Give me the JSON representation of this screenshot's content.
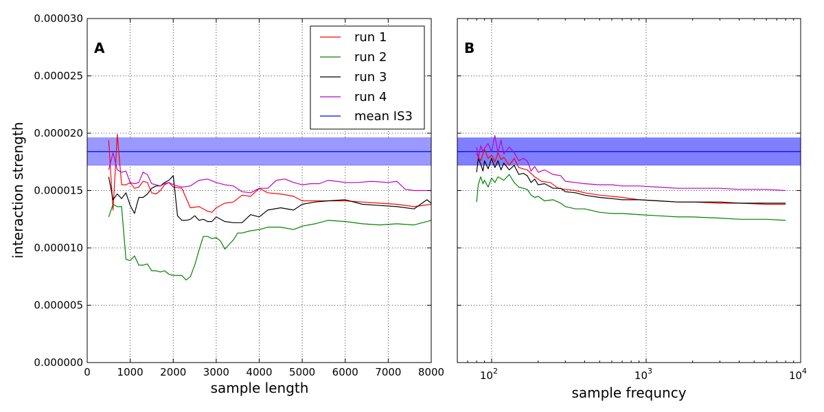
{
  "chart_data": [
    {
      "panel": "A",
      "type": "line",
      "panel_label": "A",
      "xlabel": "sample length",
      "ylabel": "interaction strength",
      "xscale": "linear",
      "xlim": [
        0,
        8000
      ],
      "ylim": [
        0,
        3e-05
      ],
      "x_ticks": [
        0,
        1000,
        2000,
        3000,
        4000,
        5000,
        6000,
        7000,
        8000
      ],
      "x_tick_labels": [
        "0",
        "1000",
        "2000",
        "3000",
        "4000",
        "5000",
        "6000",
        "7000",
        "8000"
      ],
      "y_ticks": [
        0,
        5e-06,
        1e-05,
        1.5e-05,
        2e-05,
        2.5e-05,
        3e-05
      ],
      "y_tick_labels": [
        "0.000000",
        "0.000005",
        "0.000010",
        "0.000015",
        "0.000020",
        "0.000025",
        "0.000030"
      ],
      "grid": true,
      "legend": {
        "placement": "upper-right",
        "entries": [
          {
            "label": "run 1",
            "color": "#ff0000"
          },
          {
            "label": "run 2",
            "color": "#008000"
          },
          {
            "label": "run 3",
            "color": "#000000"
          },
          {
            "label": "run 4",
            "color": "#bf00bf"
          },
          {
            "label": "mean IS3",
            "color": "#0000ff"
          }
        ]
      },
      "band": {
        "mean": 1.84e-05,
        "low": 1.72e-05,
        "high": 1.96e-05,
        "fill_color": "#9999ff",
        "line_color": "#0000ff"
      },
      "series": [
        {
          "name": "run 1",
          "color": "#ff0000",
          "x": [
            500,
            600,
            700,
            800,
            900,
            1000,
            1100,
            1200,
            1300,
            1400,
            1500,
            1600,
            1700,
            1800,
            1900,
            2000,
            2200,
            2400,
            2600,
            2800,
            2900,
            3000,
            3200,
            3400,
            3600,
            3800,
            4000,
            4200,
            4500,
            4800,
            5000,
            5300,
            5600,
            6000,
            6400,
            6800,
            7200,
            7600,
            8000
          ],
          "y": [
            1.94e-05,
            1.33e-05,
            1.99e-05,
            1.55e-05,
            1.55e-05,
            1.57e-05,
            1.52e-05,
            1.53e-05,
            1.58e-05,
            1.57e-05,
            1.48e-05,
            1.47e-05,
            1.5e-05,
            1.55e-05,
            1.57e-05,
            1.53e-05,
            1.52e-05,
            1.35e-05,
            1.36e-05,
            1.32e-05,
            1.31e-05,
            1.35e-05,
            1.39e-05,
            1.4e-05,
            1.46e-05,
            1.45e-05,
            1.52e-05,
            1.48e-05,
            1.47e-05,
            1.45e-05,
            1.41e-05,
            1.41e-05,
            1.41e-05,
            1.41e-05,
            1.4e-05,
            1.39e-05,
            1.38e-05,
            1.36e-05,
            1.38e-05
          ]
        },
        {
          "name": "run 2",
          "color": "#008000",
          "x": [
            500,
            600,
            700,
            800,
            900,
            1000,
            1100,
            1200,
            1300,
            1400,
            1500,
            1600,
            1700,
            1800,
            1900,
            2000,
            2100,
            2200,
            2300,
            2400,
            2500,
            2600,
            2700,
            2800,
            2900,
            3000,
            3100,
            3200,
            3300,
            3400,
            3500,
            3600,
            3800,
            4000,
            4200,
            4500,
            4800,
            5000,
            5300,
            5600,
            6000,
            6400,
            6800,
            7200,
            7600,
            8000
          ],
          "y": [
            1.27e-05,
            1.38e-05,
            1.36e-05,
            1.36e-05,
            9e-06,
            8.9e-06,
            9.3e-06,
            8.5e-06,
            8.5e-06,
            8.6e-06,
            8e-06,
            8e-06,
            7.9e-06,
            8e-06,
            7.7e-06,
            7.6e-06,
            7.6e-06,
            7.6e-06,
            7.2e-06,
            7.5e-06,
            8.5e-06,
            9.8e-06,
            1.1e-05,
            1.1e-05,
            1.08e-05,
            1.09e-05,
            1.06e-05,
            9.9e-06,
            1.03e-05,
            1.07e-05,
            1.13e-05,
            1.13e-05,
            1.15e-05,
            1.16e-05,
            1.18e-05,
            1.18e-05,
            1.16e-05,
            1.19e-05,
            1.21e-05,
            1.24e-05,
            1.23e-05,
            1.21e-05,
            1.2e-05,
            1.21e-05,
            1.2e-05,
            1.24e-05
          ]
        },
        {
          "name": "run 3",
          "color": "#000000",
          "x": [
            500,
            600,
            700,
            800,
            900,
            1000,
            1100,
            1200,
            1300,
            1400,
            1500,
            1600,
            1700,
            1800,
            1900,
            2000,
            2100,
            2200,
            2300,
            2400,
            2500,
            2600,
            2700,
            2800,
            2900,
            3000,
            3200,
            3400,
            3600,
            3800,
            4000,
            4200,
            4500,
            4800,
            5000,
            5300,
            5600,
            6000,
            6400,
            6800,
            7200,
            7600,
            7900,
            8000
          ],
          "y": [
            1.62e-05,
            1.42e-05,
            1.47e-05,
            1.43e-05,
            1.48e-05,
            1.37e-05,
            1.3e-05,
            1.44e-05,
            1.44e-05,
            1.47e-05,
            1.52e-05,
            1.54e-05,
            1.54e-05,
            1.57e-05,
            1.59e-05,
            1.63e-05,
            1.28e-05,
            1.24e-05,
            1.24e-05,
            1.25e-05,
            1.28e-05,
            1.24e-05,
            1.25e-05,
            1.23e-05,
            1.23e-05,
            1.27e-05,
            1.23e-05,
            1.22e-05,
            1.22e-05,
            1.29e-05,
            1.27e-05,
            1.33e-05,
            1.35e-05,
            1.33e-05,
            1.38e-05,
            1.4e-05,
            1.41e-05,
            1.42e-05,
            1.38e-05,
            1.37e-05,
            1.36e-05,
            1.34e-05,
            1.42e-05,
            1.39e-05
          ]
        },
        {
          "name": "run 4",
          "color": "#bf00bf",
          "x": [
            500,
            600,
            700,
            800,
            900,
            1000,
            1100,
            1200,
            1300,
            1400,
            1500,
            1600,
            1700,
            1800,
            1900,
            2000,
            2200,
            2400,
            2600,
            2800,
            3000,
            3200,
            3400,
            3600,
            3800,
            4000,
            4200,
            4400,
            4600,
            4800,
            5000,
            5200,
            5400,
            5600,
            5800,
            6000,
            6300,
            6600,
            7000,
            7200,
            7400,
            7600,
            8000
          ],
          "y": [
            1.68e-05,
            1.83e-05,
            1.68e-05,
            1.66e-05,
            1.67e-05,
            1.57e-05,
            1.56e-05,
            1.57e-05,
            1.66e-05,
            1.64e-05,
            1.56e-05,
            1.55e-05,
            1.54e-05,
            1.56e-05,
            1.57e-05,
            1.55e-05,
            1.53e-05,
            1.54e-05,
            1.59e-05,
            1.6e-05,
            1.57e-05,
            1.55e-05,
            1.54e-05,
            1.49e-05,
            1.48e-05,
            1.52e-05,
            1.52e-05,
            1.59e-05,
            1.6e-05,
            1.57e-05,
            1.55e-05,
            1.56e-05,
            1.56e-05,
            1.59e-05,
            1.58e-05,
            1.57e-05,
            1.57e-05,
            1.58e-05,
            1.57e-05,
            1.58e-05,
            1.51e-05,
            1.5e-05,
            1.5e-05
          ]
        }
      ]
    },
    {
      "panel": "B",
      "type": "line",
      "panel_label": "B",
      "xlabel": "sample frequncy",
      "ylabel": "",
      "xscale": "log",
      "xlim": [
        60,
        10000
      ],
      "ylim": [
        0,
        3e-05
      ],
      "x_ticks": [
        100,
        1000,
        10000
      ],
      "x_tick_labels": [
        {
          "base": "10",
          "exp": "2"
        },
        {
          "base": "10",
          "exp": "3"
        },
        {
          "base": "10",
          "exp": "4"
        }
      ],
      "y_ticks": [
        0,
        5e-06,
        1e-05,
        1.5e-05,
        2e-05,
        2.5e-05,
        3e-05
      ],
      "y_tick_labels": [],
      "grid": true,
      "band": {
        "mean": 1.84e-05,
        "low": 1.72e-05,
        "high": 1.96e-05,
        "fill_color": "#7f7fff",
        "line_color": "#0000ff"
      },
      "series": [
        {
          "name": "run 1",
          "color": "#ff0000",
          "x": [
            80,
            85,
            90,
            95,
            100,
            105,
            110,
            115,
            120,
            130,
            140,
            150,
            170,
            190,
            210,
            240,
            270,
            300,
            350,
            400,
            500,
            600,
            700,
            900,
            1200,
            1600,
            2000,
            3000,
            4000,
            6000,
            8000
          ],
          "y": [
            1.82e-05,
            1.76e-05,
            1.86e-05,
            1.78e-05,
            1.81e-05,
            1.75e-05,
            1.83e-05,
            1.77e-05,
            1.79e-05,
            1.72e-05,
            1.78e-05,
            1.7e-05,
            1.68e-05,
            1.62e-05,
            1.58e-05,
            1.57e-05,
            1.52e-05,
            1.51e-05,
            1.5e-05,
            1.48e-05,
            1.46e-05,
            1.45e-05,
            1.44e-05,
            1.42e-05,
            1.41e-05,
            1.4e-05,
            1.4e-05,
            1.39e-05,
            1.39e-05,
            1.38e-05,
            1.38e-05
          ]
        },
        {
          "name": "run 2",
          "color": "#008000",
          "x": [
            80,
            82,
            85,
            88,
            90,
            95,
            100,
            105,
            110,
            120,
            130,
            140,
            150,
            160,
            170,
            180,
            190,
            200,
            220,
            250,
            280,
            300,
            350,
            400,
            500,
            600,
            700,
            900,
            1200,
            1600,
            2000,
            3000,
            4000,
            6000,
            8000
          ],
          "y": [
            1.4e-05,
            1.55e-05,
            1.62e-05,
            1.56e-05,
            1.59e-05,
            1.53e-05,
            1.61e-05,
            1.57e-05,
            1.62e-05,
            1.59e-05,
            1.64e-05,
            1.57e-05,
            1.53e-05,
            1.52e-05,
            1.51e-05,
            1.46e-05,
            1.44e-05,
            1.45e-05,
            1.41e-05,
            1.42e-05,
            1.39e-05,
            1.36e-05,
            1.34e-05,
            1.34e-05,
            1.31e-05,
            1.3e-05,
            1.3e-05,
            1.29e-05,
            1.28e-05,
            1.27e-05,
            1.27e-05,
            1.26e-05,
            1.25e-05,
            1.25e-05,
            1.24e-05
          ]
        },
        {
          "name": "run 3",
          "color": "#000000",
          "x": [
            80,
            82,
            85,
            88,
            90,
            95,
            100,
            105,
            110,
            115,
            120,
            130,
            140,
            150,
            160,
            170,
            180,
            190,
            200,
            220,
            250,
            280,
            300,
            350,
            400,
            500,
            600,
            700,
            900,
            1200,
            1600,
            2000,
            3000,
            4000,
            6000,
            8000
          ],
          "y": [
            1.66e-05,
            1.78e-05,
            1.73e-05,
            1.67e-05,
            1.76e-05,
            1.69e-05,
            1.78e-05,
            1.7e-05,
            1.76e-05,
            1.68e-05,
            1.74e-05,
            1.68e-05,
            1.72e-05,
            1.64e-05,
            1.65e-05,
            1.63e-05,
            1.57e-05,
            1.6e-05,
            1.55e-05,
            1.56e-05,
            1.52e-05,
            1.52e-05,
            1.49e-05,
            1.48e-05,
            1.46e-05,
            1.44e-05,
            1.43e-05,
            1.42e-05,
            1.42e-05,
            1.41e-05,
            1.4e-05,
            1.4e-05,
            1.4e-05,
            1.39e-05,
            1.39e-05,
            1.39e-05
          ]
        },
        {
          "name": "run 4",
          "color": "#bf00bf",
          "x": [
            80,
            82,
            85,
            88,
            90,
            95,
            100,
            105,
            110,
            115,
            120,
            130,
            140,
            150,
            160,
            170,
            180,
            190,
            200,
            220,
            250,
            280,
            300,
            350,
            400,
            500,
            600,
            700,
            900,
            1200,
            1600,
            2000,
            3000,
            4000,
            6000,
            8000
          ],
          "y": [
            1.88e-05,
            1.78e-05,
            1.89e-05,
            1.84e-05,
            1.87e-05,
            1.91e-05,
            1.84e-05,
            1.98e-05,
            1.83e-05,
            1.94e-05,
            1.82e-05,
            1.88e-05,
            1.83e-05,
            1.76e-05,
            1.78e-05,
            1.76e-05,
            1.67e-05,
            1.71e-05,
            1.66e-05,
            1.68e-05,
            1.64e-05,
            1.63e-05,
            1.58e-05,
            1.57e-05,
            1.56e-05,
            1.55e-05,
            1.55e-05,
            1.54e-05,
            1.54e-05,
            1.53e-05,
            1.52e-05,
            1.52e-05,
            1.52e-05,
            1.51e-05,
            1.51e-05,
            1.5e-05
          ]
        }
      ]
    }
  ]
}
